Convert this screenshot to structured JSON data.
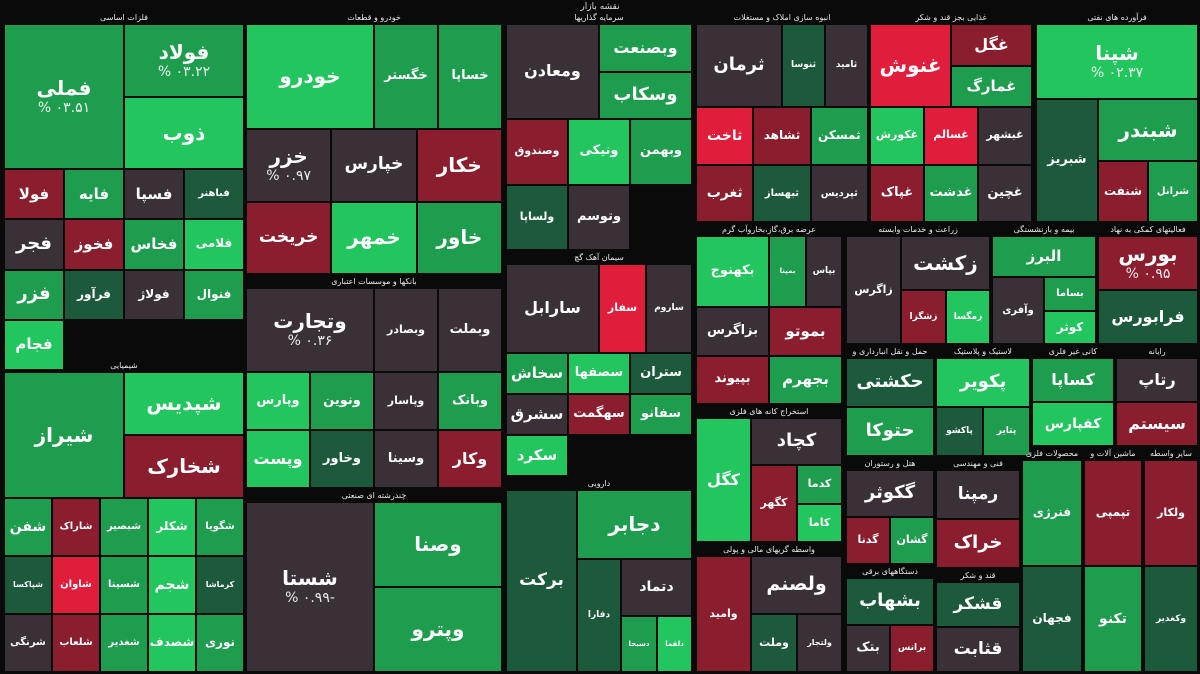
{
  "title": "نقشه بازار",
  "colors": {
    "bright_green": "#22c55e",
    "green": "#1f9d4e",
    "dark_green": "#1d5a3c",
    "neutral": "#3a3038",
    "red": "#e11d3c",
    "dark_red": "#8a1e2e"
  },
  "chart_data": {
    "type": "treemap",
    "sectors": [
      {
        "name": "فلزات اساسی",
        "stocks": [
          {
            "name": "فملی",
            "pct": "% ۰۳.۵۱"
          },
          {
            "name": "فولاد",
            "pct": "% ۰۳.۲۲"
          },
          {
            "name": "ذوب",
            "pct": ""
          },
          {
            "name": "فولا",
            "pct": ""
          },
          {
            "name": "فایه",
            "pct": ""
          },
          {
            "name": "فسپا",
            "pct": ""
          },
          {
            "name": "فباهنر",
            "pct": ""
          },
          {
            "name": "فجر",
            "pct": ""
          },
          {
            "name": "فخوز",
            "pct": ""
          },
          {
            "name": "فخاس",
            "pct": ""
          },
          {
            "name": "فلامی",
            "pct": ""
          },
          {
            "name": "فزر",
            "pct": ""
          },
          {
            "name": "فرآور",
            "pct": ""
          },
          {
            "name": "فولاژ",
            "pct": ""
          },
          {
            "name": "فنوال",
            "pct": ""
          },
          {
            "name": "فجام",
            "pct": ""
          }
        ]
      },
      {
        "name": "خودرو و قطعات",
        "stocks": [
          {
            "name": "خودرو",
            "pct": ""
          },
          {
            "name": "خگستر",
            "pct": ""
          },
          {
            "name": "خساپا",
            "pct": ""
          },
          {
            "name": "خزر",
            "pct": "% ۰.۹۷"
          },
          {
            "name": "خپارس",
            "pct": ""
          },
          {
            "name": "خکار",
            "pct": ""
          },
          {
            "name": "خریخت",
            "pct": ""
          },
          {
            "name": "خمهر",
            "pct": ""
          },
          {
            "name": "خاور",
            "pct": ""
          }
        ]
      },
      {
        "name": "سرمایه گذاریها",
        "stocks": [
          {
            "name": "ومعادن",
            "pct": ""
          },
          {
            "name": "وبصنعت",
            "pct": ""
          },
          {
            "name": "وسکاب",
            "pct": ""
          },
          {
            "name": "وصندوق",
            "pct": ""
          },
          {
            "name": "ونیکی",
            "pct": ""
          },
          {
            "name": "وبهمن",
            "pct": ""
          },
          {
            "name": "ولساپا",
            "pct": ""
          },
          {
            "name": "وتوسم",
            "pct": ""
          }
        ]
      },
      {
        "name": "انبوه سازی املاک و مستغلات",
        "stocks": [
          {
            "name": "ثرمان",
            "pct": ""
          },
          {
            "name": "ثنوسا",
            "pct": ""
          },
          {
            "name": "ثامید",
            "pct": ""
          },
          {
            "name": "ثاخت",
            "pct": ""
          },
          {
            "name": "ثشاهد",
            "pct": ""
          },
          {
            "name": "ثمسکن",
            "pct": ""
          },
          {
            "name": "ثغرب",
            "pct": ""
          },
          {
            "name": "ثبهساز",
            "pct": ""
          },
          {
            "name": "ثپردیس",
            "pct": ""
          }
        ]
      },
      {
        "name": "غذایی بجز قند و شکر",
        "stocks": [
          {
            "name": "غنوش",
            "pct": ""
          },
          {
            "name": "غگل",
            "pct": ""
          },
          {
            "name": "غمارگ",
            "pct": ""
          },
          {
            "name": "غکورش",
            "pct": ""
          },
          {
            "name": "غسالم",
            "pct": ""
          },
          {
            "name": "غبشهر",
            "pct": ""
          },
          {
            "name": "غپاک",
            "pct": ""
          },
          {
            "name": "غدشت",
            "pct": ""
          },
          {
            "name": "غچین",
            "pct": ""
          }
        ]
      },
      {
        "name": "فرآورده های نفتی",
        "stocks": [
          {
            "name": "شپنا",
            "pct": "% ۰۲.۳۷"
          },
          {
            "name": "شبریز",
            "pct": ""
          },
          {
            "name": "شبندر",
            "pct": ""
          },
          {
            "name": "شنفت",
            "pct": ""
          },
          {
            "name": "شرانل",
            "pct": ""
          }
        ]
      },
      {
        "name": "بانکها و موسسات اعتباری",
        "stocks": [
          {
            "name": "وتجارت",
            "pct": "% ۰.۳۶"
          },
          {
            "name": "وبصادر",
            "pct": ""
          },
          {
            "name": "وبملت",
            "pct": ""
          },
          {
            "name": "وپارس",
            "pct": ""
          },
          {
            "name": "ونوین",
            "pct": ""
          },
          {
            "name": "وپاسار",
            "pct": ""
          },
          {
            "name": "وبانک",
            "pct": ""
          },
          {
            "name": "وپست",
            "pct": ""
          },
          {
            "name": "وخاور",
            "pct": ""
          },
          {
            "name": "وسینا",
            "pct": ""
          },
          {
            "name": "وکار",
            "pct": ""
          }
        ]
      },
      {
        "name": "سیمان آهک گچ",
        "stocks": [
          {
            "name": "سارابل",
            "pct": ""
          },
          {
            "name": "سفار",
            "pct": ""
          },
          {
            "name": "ساروم",
            "pct": ""
          },
          {
            "name": "سخاش",
            "pct": ""
          },
          {
            "name": "سصفها",
            "pct": ""
          },
          {
            "name": "ستران",
            "pct": ""
          },
          {
            "name": "سشرق",
            "pct": ""
          },
          {
            "name": "سهگمت",
            "pct": ""
          },
          {
            "name": "سفانو",
            "pct": ""
          },
          {
            "name": "سکرد",
            "pct": ""
          }
        ]
      },
      {
        "name": "شیمیایی",
        "stocks": [
          {
            "name": "شیراز",
            "pct": ""
          },
          {
            "name": "شپدیس",
            "pct": ""
          },
          {
            "name": "شخارک",
            "pct": ""
          },
          {
            "name": "شفن",
            "pct": ""
          },
          {
            "name": "شاراک",
            "pct": ""
          },
          {
            "name": "شبصیر",
            "pct": ""
          },
          {
            "name": "شکلر",
            "pct": ""
          },
          {
            "name": "شگویا",
            "pct": ""
          },
          {
            "name": "شپاکسا",
            "pct": ""
          },
          {
            "name": "شاوان",
            "pct": ""
          },
          {
            "name": "شسینا",
            "pct": ""
          },
          {
            "name": "شجم",
            "pct": ""
          },
          {
            "name": "کرماشا",
            "pct": ""
          },
          {
            "name": "شرنگی",
            "pct": ""
          },
          {
            "name": "شلعاب",
            "pct": ""
          },
          {
            "name": "شغدیر",
            "pct": ""
          },
          {
            "name": "شصدف",
            "pct": ""
          },
          {
            "name": "نوری",
            "pct": ""
          }
        ]
      },
      {
        "name": "چندرشته ای صنعتی",
        "stocks": [
          {
            "name": "شستا",
            "pct": "% ۰.۹۹-"
          },
          {
            "name": "وصنا",
            "pct": ""
          },
          {
            "name": "وپترو",
            "pct": ""
          }
        ]
      },
      {
        "name": "دارویی",
        "stocks": [
          {
            "name": "برکت",
            "pct": ""
          },
          {
            "name": "دجابر",
            "pct": ""
          },
          {
            "name": "دفارا",
            "pct": ""
          },
          {
            "name": "دتماد",
            "pct": ""
          },
          {
            "name": "دسبحا",
            "pct": ""
          },
          {
            "name": "دلقما",
            "pct": ""
          }
        ]
      },
      {
        "name": "عرضه برق،گاز،بخاروآب گرم",
        "stocks": [
          {
            "name": "بکهنوج",
            "pct": ""
          },
          {
            "name": "بمپنا",
            "pct": ""
          },
          {
            "name": "بپاس",
            "pct": ""
          },
          {
            "name": "بزاگرس",
            "pct": ""
          },
          {
            "name": "بموتو",
            "pct": ""
          },
          {
            "name": "بپیوند",
            "pct": ""
          },
          {
            "name": "بجهرم",
            "pct": ""
          }
        ]
      },
      {
        "name": "استخراج کانه های فلزی",
        "stocks": [
          {
            "name": "کگل",
            "pct": ""
          },
          {
            "name": "کچاد",
            "pct": ""
          },
          {
            "name": "کگهر",
            "pct": ""
          },
          {
            "name": "کدما",
            "pct": ""
          },
          {
            "name": "کاما",
            "pct": ""
          }
        ]
      },
      {
        "name": "زراعت و خدمات وابسته",
        "stocks": [
          {
            "name": "زاگرس",
            "pct": ""
          },
          {
            "name": "زکشت",
            "pct": ""
          },
          {
            "name": "زشگزا",
            "pct": ""
          },
          {
            "name": "زمگسا",
            "pct": ""
          }
        ]
      },
      {
        "name": "بیمه و بازنشستگی",
        "stocks": [
          {
            "name": "البرز",
            "pct": ""
          },
          {
            "name": "وآفری",
            "pct": ""
          },
          {
            "name": "بساما",
            "pct": ""
          },
          {
            "name": "کوثر",
            "pct": ""
          }
        ]
      },
      {
        "name": "فعالیتهای کمکی به نهاد",
        "stocks": [
          {
            "name": "بورس",
            "pct": "% ۰.۹۵"
          },
          {
            "name": "فرابورس",
            "pct": ""
          }
        ]
      },
      {
        "name": "حمل و نقل انبارداری و",
        "stocks": [
          {
            "name": "حکشتی",
            "pct": ""
          },
          {
            "name": "حتوکا",
            "pct": ""
          }
        ]
      },
      {
        "name": "لاستیک و پلاستیک",
        "stocks": [
          {
            "name": "پکویر",
            "pct": ""
          },
          {
            "name": "پاکشو",
            "pct": ""
          },
          {
            "name": "پتایر",
            "pct": ""
          }
        ]
      },
      {
        "name": "کانی غیر فلزی",
        "stocks": [
          {
            "name": "کساپا",
            "pct": ""
          },
          {
            "name": "کفپارس",
            "pct": ""
          }
        ]
      },
      {
        "name": "رایانه",
        "stocks": [
          {
            "name": "رتاپ",
            "pct": ""
          },
          {
            "name": "سیستم",
            "pct": ""
          }
        ]
      },
      {
        "name": "واسطه گریهای مالی و پولی",
        "stocks": [
          {
            "name": "وامید",
            "pct": ""
          },
          {
            "name": "ولصنم",
            "pct": ""
          },
          {
            "name": "وملت",
            "pct": ""
          },
          {
            "name": "ولتجار",
            "pct": ""
          }
        ]
      },
      {
        "name": "هتل و رستوران",
        "stocks": [
          {
            "name": "گکوثر",
            "pct": ""
          },
          {
            "name": "گدنا",
            "pct": ""
          },
          {
            "name": "گشان",
            "pct": ""
          }
        ]
      },
      {
        "name": "دستگاههای برقی",
        "stocks": [
          {
            "name": "بشهاب",
            "pct": ""
          },
          {
            "name": "بتک",
            "pct": ""
          },
          {
            "name": "برانس",
            "pct": ""
          }
        ]
      },
      {
        "name": "فنی و مهندسی",
        "stocks": [
          {
            "name": "رمپنا",
            "pct": ""
          },
          {
            "name": "خراک",
            "pct": ""
          }
        ]
      },
      {
        "name": "قند و شکر",
        "stocks": [
          {
            "name": "قشکر",
            "pct": ""
          },
          {
            "name": "قثابت",
            "pct": ""
          }
        ]
      },
      {
        "name": "محصولات فلزی",
        "stocks": [
          {
            "name": "فنرژی",
            "pct": ""
          },
          {
            "name": "فجهان",
            "pct": ""
          }
        ]
      },
      {
        "name": "ماشین آلات و",
        "stocks": [
          {
            "name": "تپمپی",
            "pct": ""
          },
          {
            "name": "تکنو",
            "pct": ""
          }
        ]
      },
      {
        "name": "سایر واسطه",
        "stocks": [
          {
            "name": "ولکار",
            "pct": ""
          },
          {
            "name": "وکغدیر",
            "pct": ""
          }
        ]
      }
    ]
  }
}
